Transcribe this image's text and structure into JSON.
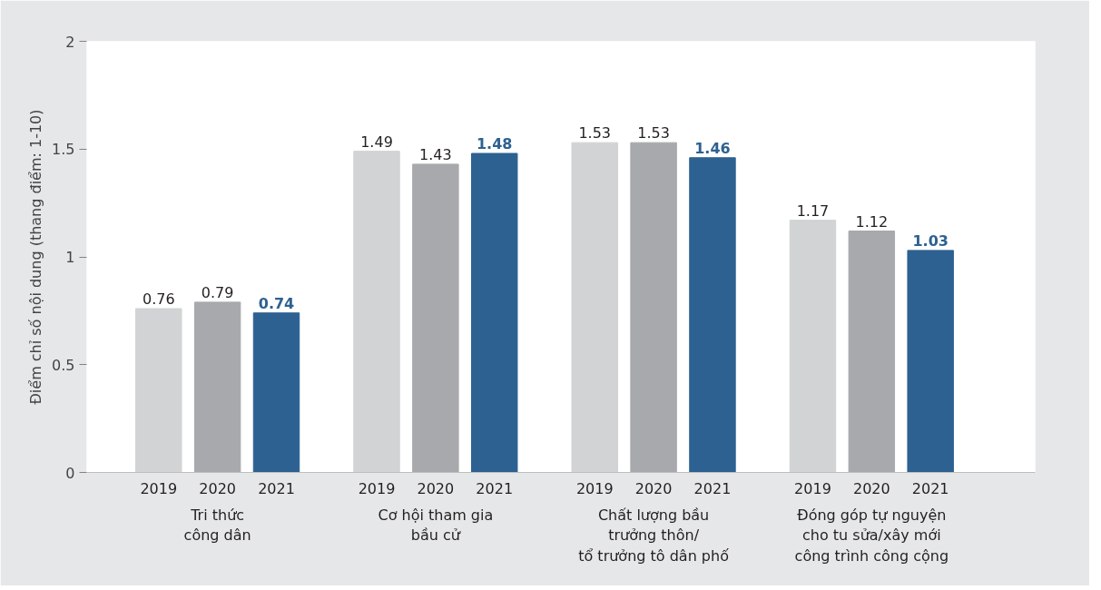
{
  "chart_data": {
    "type": "bar",
    "ylabel": "Điểm chỉ số nội dung (thang điểm: 1-10)",
    "categories": [
      "Tri thức\ncông dân",
      "Cơ hội tham gia\nbầu cử",
      "Chất lượng bầu\ntrưởng thôn/\ntổ trưởng tô dân phố",
      "Đóng góp tự nguyện\ncho tu sửa/xây mới\ncông trình công cộng"
    ],
    "series": [
      {
        "name": "2019",
        "color": "#d1d3d4",
        "values": [
          0.76,
          1.49,
          1.53,
          1.17
        ]
      },
      {
        "name": "2020",
        "color": "#a7a9ac",
        "values": [
          0.79,
          1.43,
          1.53,
          1.12
        ]
      },
      {
        "name": "2021",
        "color": "#2d6191",
        "values": [
          0.74,
          1.48,
          1.46,
          1.03
        ]
      }
    ],
    "data_labels": true,
    "ylim": [
      0,
      2
    ],
    "yticks": [
      0,
      0.5,
      1,
      1.5,
      2
    ]
  }
}
